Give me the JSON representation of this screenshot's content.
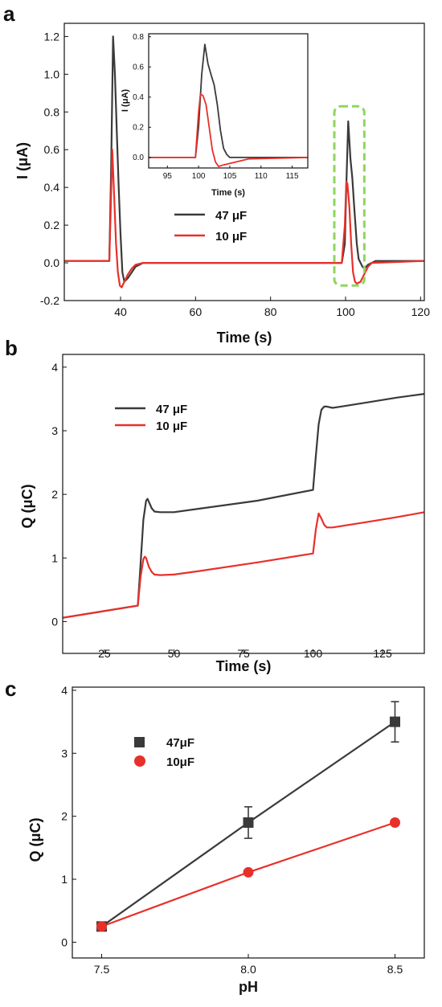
{
  "chart_data": [
    {
      "id": "a",
      "panel_label": "a",
      "type": "line",
      "xlabel": "Time (s)",
      "ylabel": "I (μA)",
      "xlim": [
        25,
        121
      ],
      "ylim": [
        -0.2,
        1.27
      ],
      "xticks": [
        40,
        60,
        80,
        100,
        120
      ],
      "yticks": [
        -0.2,
        0.0,
        0.2,
        0.4,
        0.6,
        0.8,
        1.0,
        1.2
      ],
      "ytick_labels": [
        "-0.2",
        "0.0",
        "0.2",
        "0.4",
        "0.6",
        "0.8",
        "1.0",
        "1.2"
      ],
      "legend_position": "middle-left",
      "series": [
        {
          "name": "47 μF",
          "color": "#3a3a3a",
          "x": [
            25,
            37,
            37.5,
            38,
            38.5,
            39,
            39.5,
            40,
            40.5,
            41,
            42,
            43,
            44,
            46,
            50,
            60,
            80,
            99,
            99.8,
            100.2,
            100.7,
            101.3,
            101.8,
            102.3,
            103,
            103.5,
            104,
            104.5,
            105,
            106,
            108,
            121
          ],
          "y": [
            0.01,
            0.01,
            0.5,
            1.2,
            1.0,
            0.7,
            0.4,
            0.15,
            -0.05,
            -0.1,
            -0.08,
            -0.05,
            -0.02,
            0.0,
            0.0,
            0.0,
            0.0,
            0.0,
            0.1,
            0.4,
            0.75,
            0.55,
            0.45,
            0.3,
            0.1,
            0.02,
            0.0,
            -0.02,
            -0.03,
            -0.01,
            0.01,
            0.01
          ]
        },
        {
          "name": "10 μF",
          "color": "#e8302a",
          "x": [
            25,
            37,
            37.4,
            37.8,
            38.3,
            38.8,
            39.3,
            39.8,
            40.3,
            41,
            42,
            43,
            44,
            46,
            50,
            60,
            80,
            99,
            99.8,
            100.2,
            100.5,
            101,
            101.5,
            102,
            102.5,
            103,
            104,
            105,
            106,
            107,
            121
          ],
          "y": [
            0.01,
            0.01,
            0.3,
            0.6,
            0.35,
            0.1,
            -0.05,
            -0.12,
            -0.13,
            -0.1,
            -0.06,
            -0.03,
            -0.01,
            0.0,
            0.0,
            0.0,
            0.0,
            0.0,
            0.2,
            0.43,
            0.42,
            0.3,
            0.1,
            -0.05,
            -0.1,
            -0.11,
            -0.1,
            -0.06,
            -0.02,
            0.0,
            0.01
          ]
        }
      ],
      "highlight_box": {
        "x_range": [
          97,
          105
        ],
        "y_range": [
          -0.12,
          0.83
        ],
        "color": "#8ed65e"
      },
      "inset": {
        "xlabel": "Time (s)",
        "ylabel": "I (μA)",
        "xlim": [
          92,
          117.5
        ],
        "ylim": [
          -0.07,
          0.82
        ],
        "xticks": [
          95,
          100,
          105,
          110,
          115
        ],
        "yticks": [
          0.0,
          0.2,
          0.4,
          0.6,
          0.8
        ],
        "ytick_labels": [
          "0.0",
          "0.2",
          "0.4",
          "0.6",
          "0.8"
        ],
        "series": [
          {
            "name": "47 μF",
            "color": "#3a3a3a",
            "x": [
              92,
              99.5,
              100,
              100.5,
              101,
              101.5,
              102,
              102.5,
              103,
              103.5,
              104,
              104.5,
              105,
              106,
              108,
              117.5
            ],
            "y": [
              0.0,
              0.0,
              0.2,
              0.55,
              0.75,
              0.62,
              0.55,
              0.48,
              0.35,
              0.18,
              0.06,
              0.02,
              0.0,
              0.0,
              0.0,
              0.0
            ]
          },
          {
            "name": "10 μF",
            "color": "#e8302a",
            "x": [
              92,
              99.5,
              100,
              100.3,
              100.7,
              101.2,
              101.7,
              102.2,
              102.7,
              103.2,
              104,
              105,
              106,
              107,
              108,
              117.5
            ],
            "y": [
              0.0,
              0.0,
              0.3,
              0.42,
              0.41,
              0.35,
              0.2,
              0.05,
              -0.03,
              -0.06,
              -0.05,
              -0.04,
              -0.03,
              -0.02,
              -0.01,
              0.0
            ]
          }
        ]
      }
    },
    {
      "id": "b",
      "panel_label": "b",
      "type": "line",
      "xlabel": "Time (s)",
      "ylabel": "Q (μC)",
      "xlim": [
        10,
        140
      ],
      "ylim": [
        -0.5,
        4.2
      ],
      "xticks": [
        25,
        50,
        75,
        100,
        125
      ],
      "yticks": [
        0,
        1,
        2,
        3,
        4
      ],
      "ytick_labels": [
        "0",
        "1",
        "2",
        "3",
        "4"
      ],
      "legend_position": "top-left",
      "series": [
        {
          "name": "47 μF",
          "color": "#3a3a3a",
          "x": [
            10,
            37,
            38,
            39,
            40,
            40.5,
            41,
            42,
            43,
            45,
            50,
            60,
            80,
            100,
            101,
            102,
            103,
            104,
            105,
            107,
            110,
            120,
            130,
            140
          ],
          "y": [
            0.06,
            0.25,
            0.9,
            1.6,
            1.9,
            1.93,
            1.88,
            1.78,
            1.73,
            1.72,
            1.72,
            1.78,
            1.9,
            2.07,
            2.6,
            3.1,
            3.33,
            3.38,
            3.38,
            3.36,
            3.38,
            3.45,
            3.52,
            3.58
          ]
        },
        {
          "name": "10 μF",
          "color": "#e8302a",
          "x": [
            10,
            37,
            38,
            39,
            39.5,
            40,
            41,
            42,
            43,
            45,
            50,
            60,
            80,
            100,
            101,
            102,
            103,
            104,
            105,
            107,
            110,
            120,
            130,
            140
          ],
          "y": [
            0.06,
            0.25,
            0.7,
            0.98,
            1.02,
            1.0,
            0.86,
            0.78,
            0.74,
            0.73,
            0.74,
            0.8,
            0.93,
            1.07,
            1.45,
            1.7,
            1.62,
            1.52,
            1.48,
            1.48,
            1.5,
            1.57,
            1.64,
            1.72
          ]
        }
      ]
    },
    {
      "id": "c",
      "panel_label": "c",
      "type": "scatter",
      "xlabel": "pH",
      "ylabel": "Q (μC)",
      "xlim": [
        7.4,
        8.6
      ],
      "ylim": [
        -0.25,
        4.05
      ],
      "xticks": [
        7.5,
        8.0,
        8.5
      ],
      "xtick_labels": [
        "7.5",
        "8.0",
        "8.5"
      ],
      "yticks": [
        0,
        1,
        2,
        3,
        4
      ],
      "ytick_labels": [
        "0",
        "1",
        "2",
        "3",
        "4"
      ],
      "legend_position": "top-left",
      "series": [
        {
          "name": "47μF",
          "color": "#3a3a3a",
          "marker": "square",
          "x": [
            7.5,
            8.0,
            8.5
          ],
          "y": [
            0.25,
            1.9,
            3.5
          ],
          "yerr": [
            0.05,
            0.25,
            0.32
          ]
        },
        {
          "name": "10μF",
          "color": "#e8302a",
          "marker": "circle",
          "x": [
            7.5,
            8.0,
            8.5
          ],
          "y": [
            0.25,
            1.11,
            1.9
          ],
          "yerr": [
            0.03,
            0.03,
            0.03
          ]
        }
      ]
    }
  ]
}
